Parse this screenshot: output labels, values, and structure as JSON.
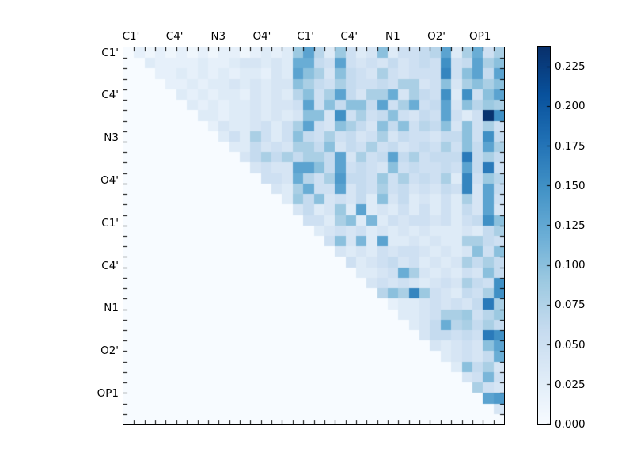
{
  "figure": {
    "background_color": "#ffffff",
    "frame_color": "#000000",
    "text_color": "#000000"
  },
  "chart_data": {
    "type": "heatmap",
    "title": "",
    "xlabel": "",
    "ylabel": "",
    "colormap": "Blues",
    "colormap_stops": [
      "#f7fbff",
      "#deebf7",
      "#c6dbef",
      "#9ecae1",
      "#6baed6",
      "#4292c6",
      "#2171b5",
      "#08519c",
      "#08306b"
    ],
    "vmin": 0.0,
    "vmax": 0.2375,
    "n_rows": 36,
    "n_cols": 36,
    "mask": "lower triangle and diagonal shown as vmin (blank)",
    "x_tick_labels": [
      "C1'",
      "C4'",
      "N3",
      "O4'",
      "C1'",
      "C4'",
      "N1",
      "O2'",
      "OP1"
    ],
    "y_tick_labels": [
      "C1'",
      "C4'",
      "N3",
      "O4'",
      "C1'",
      "C4'",
      "N1",
      "O2'",
      "OP1"
    ],
    "colorbar": {
      "position": "right",
      "tick_labels": [
        "0.000",
        "0.025",
        "0.050",
        "0.075",
        "0.100",
        "0.125",
        "0.150",
        "0.175",
        "0.200",
        "0.225"
      ],
      "tick_values": [
        0.0,
        0.025,
        0.05,
        0.075,
        0.1,
        0.125,
        0.15,
        0.175,
        0.2,
        0.225
      ]
    },
    "matrix": [
      [
        0,
        0.02,
        0.01,
        0.02,
        0.01,
        0.02,
        0.01,
        0.02,
        0.01,
        0.02,
        0.02,
        0.01,
        0.02,
        0.03,
        0.02,
        0.03,
        0.09,
        0.13,
        0.07,
        0.03,
        0.09,
        0.05,
        0.03,
        0.04,
        0.1,
        0.03,
        0.05,
        0.05,
        0.06,
        0.07,
        0.13,
        0.03,
        0.08,
        0.12,
        0.05,
        0.08
      ],
      [
        0,
        0,
        0.03,
        0.02,
        0.02,
        0.02,
        0.02,
        0.03,
        0.02,
        0.02,
        0.03,
        0.04,
        0.04,
        0.03,
        0.04,
        0.03,
        0.12,
        0.12,
        0.06,
        0.05,
        0.13,
        0.05,
        0.04,
        0.05,
        0.04,
        0.06,
        0.04,
        0.05,
        0.06,
        0.05,
        0.15,
        0.05,
        0.06,
        0.13,
        0.08,
        0.1
      ],
      [
        0,
        0,
        0,
        0.02,
        0.02,
        0.03,
        0.02,
        0.03,
        0.02,
        0.03,
        0.02,
        0.03,
        0.03,
        0.02,
        0.04,
        0.03,
        0.13,
        0.1,
        0.08,
        0.04,
        0.1,
        0.06,
        0.05,
        0.04,
        0.08,
        0.05,
        0.04,
        0.05,
        0.05,
        0.05,
        0.16,
        0.05,
        0.1,
        0.13,
        0.06,
        0.13
      ],
      [
        0,
        0,
        0,
        0,
        0.02,
        0.02,
        0.03,
        0.02,
        0.03,
        0.03,
        0.04,
        0.03,
        0.04,
        0.03,
        0.04,
        0.04,
        0.1,
        0.08,
        0.06,
        0.05,
        0.08,
        0.06,
        0.05,
        0.05,
        0.06,
        0.05,
        0.08,
        0.08,
        0.04,
        0.05,
        0.1,
        0.04,
        0.08,
        0.1,
        0.08,
        0.1
      ],
      [
        0,
        0,
        0,
        0,
        0,
        0.03,
        0.02,
        0.03,
        0.02,
        0.03,
        0.03,
        0.02,
        0.04,
        0.03,
        0.04,
        0.03,
        0.07,
        0.1,
        0.05,
        0.08,
        0.13,
        0.06,
        0.04,
        0.08,
        0.08,
        0.12,
        0.04,
        0.08,
        0.06,
        0.05,
        0.15,
        0.03,
        0.15,
        0.05,
        0.1,
        0.13
      ],
      [
        0,
        0,
        0,
        0,
        0,
        0,
        0.03,
        0.02,
        0.03,
        0.02,
        0.03,
        0.03,
        0.04,
        0.03,
        0.04,
        0.04,
        0.05,
        0.13,
        0.05,
        0.1,
        0.06,
        0.1,
        0.1,
        0.06,
        0.13,
        0.05,
        0.08,
        0.12,
        0.05,
        0.06,
        0.13,
        0.04,
        0.1,
        0.07,
        0.09,
        0.08
      ],
      [
        0,
        0,
        0,
        0,
        0,
        0,
        0,
        0.03,
        0.03,
        0.02,
        0.03,
        0.03,
        0.04,
        0.03,
        0.04,
        0.03,
        0.04,
        0.1,
        0.1,
        0.04,
        0.15,
        0.05,
        0.08,
        0.05,
        0.06,
        0.1,
        0.05,
        0.04,
        0.06,
        0.05,
        0.13,
        0.05,
        0.03,
        0.05,
        0.235,
        0.15
      ],
      [
        0,
        0,
        0,
        0,
        0,
        0,
        0,
        0,
        0.02,
        0.04,
        0.03,
        0.03,
        0.04,
        0.05,
        0.03,
        0.05,
        0.08,
        0.13,
        0.05,
        0.04,
        0.1,
        0.08,
        0.06,
        0.04,
        0.1,
        0.06,
        0.1,
        0.05,
        0.07,
        0.06,
        0.1,
        0.04,
        0.1,
        0.05,
        0.08,
        0.05
      ],
      [
        0,
        0,
        0,
        0,
        0,
        0,
        0,
        0,
        0,
        0.03,
        0.05,
        0.03,
        0.08,
        0.05,
        0.03,
        0.05,
        0.1,
        0.06,
        0.05,
        0.08,
        0.05,
        0.06,
        0.04,
        0.05,
        0.08,
        0.04,
        0.06,
        0.05,
        0.05,
        0.04,
        0.06,
        0.06,
        0.1,
        0.05,
        0.15,
        0.06
      ],
      [
        0,
        0,
        0,
        0,
        0,
        0,
        0,
        0,
        0,
        0,
        0.03,
        0.03,
        0.06,
        0.04,
        0.05,
        0.04,
        0.08,
        0.08,
        0.06,
        0.1,
        0.04,
        0.06,
        0.05,
        0.08,
        0.05,
        0.06,
        0.04,
        0.05,
        0.06,
        0.05,
        0.08,
        0.05,
        0.1,
        0.06,
        0.13,
        0.08
      ],
      [
        0,
        0,
        0,
        0,
        0,
        0,
        0,
        0,
        0,
        0,
        0,
        0.04,
        0.06,
        0.08,
        0.06,
        0.08,
        0.06,
        0.08,
        0.08,
        0.06,
        0.13,
        0.04,
        0.08,
        0.05,
        0.06,
        0.13,
        0.06,
        0.08,
        0.05,
        0.06,
        0.06,
        0.06,
        0.17,
        0.06,
        0.08,
        0.06
      ],
      [
        0,
        0,
        0,
        0,
        0,
        0,
        0,
        0,
        0,
        0,
        0,
        0,
        0.04,
        0.05,
        0.04,
        0.04,
        0.13,
        0.13,
        0.1,
        0.06,
        0.13,
        0.05,
        0.06,
        0.05,
        0.04,
        0.1,
        0.05,
        0.06,
        0.05,
        0.05,
        0.06,
        0.05,
        0.13,
        0.06,
        0.17,
        0.05
      ],
      [
        0,
        0,
        0,
        0,
        0,
        0,
        0,
        0,
        0,
        0,
        0,
        0,
        0,
        0.05,
        0.05,
        0.04,
        0.12,
        0.07,
        0.05,
        0.08,
        0.14,
        0.06,
        0.06,
        0.05,
        0.09,
        0.05,
        0.08,
        0.05,
        0.06,
        0.05,
        0.08,
        0.03,
        0.16,
        0.05,
        0.09,
        0.07
      ],
      [
        0,
        0,
        0,
        0,
        0,
        0,
        0,
        0,
        0,
        0,
        0,
        0,
        0,
        0,
        0.04,
        0.03,
        0.08,
        0.12,
        0.05,
        0.05,
        0.13,
        0.04,
        0.06,
        0.05,
        0.08,
        0.05,
        0.06,
        0.04,
        0.05,
        0.04,
        0.06,
        0.05,
        0.16,
        0.04,
        0.13,
        0.06
      ],
      [
        0,
        0,
        0,
        0,
        0,
        0,
        0,
        0,
        0,
        0,
        0,
        0,
        0,
        0,
        0,
        0.03,
        0.09,
        0.06,
        0.1,
        0.04,
        0.05,
        0.04,
        0.06,
        0.03,
        0.1,
        0.04,
        0.06,
        0.03,
        0.04,
        0.03,
        0.05,
        0.03,
        0.08,
        0.04,
        0.13,
        0.05
      ],
      [
        0,
        0,
        0,
        0,
        0,
        0,
        0,
        0,
        0,
        0,
        0,
        0,
        0,
        0,
        0,
        0,
        0.04,
        0.06,
        0.03,
        0.04,
        0.09,
        0.03,
        0.13,
        0.03,
        0.04,
        0.03,
        0.05,
        0.03,
        0.05,
        0.03,
        0.05,
        0.03,
        0.06,
        0.04,
        0.13,
        0.04
      ],
      [
        0,
        0,
        0,
        0,
        0,
        0,
        0,
        0,
        0,
        0,
        0,
        0,
        0,
        0,
        0,
        0,
        0,
        0.05,
        0.05,
        0.03,
        0.08,
        0.1,
        0.03,
        0.11,
        0.03,
        0.05,
        0.04,
        0.05,
        0.05,
        0.04,
        0.05,
        0.03,
        0.05,
        0.06,
        0.15,
        0.1
      ],
      [
        0,
        0,
        0,
        0,
        0,
        0,
        0,
        0,
        0,
        0,
        0,
        0,
        0,
        0,
        0,
        0,
        0,
        0,
        0.03,
        0.04,
        0.05,
        0.04,
        0.05,
        0.03,
        0.04,
        0.03,
        0.04,
        0.03,
        0.04,
        0.03,
        0.03,
        0.03,
        0.04,
        0.03,
        0.06,
        0.08
      ],
      [
        0,
        0,
        0,
        0,
        0,
        0,
        0,
        0,
        0,
        0,
        0,
        0,
        0,
        0,
        0,
        0,
        0,
        0,
        0,
        0.05,
        0.1,
        0.04,
        0.11,
        0.03,
        0.13,
        0.03,
        0.03,
        0.04,
        0.03,
        0.04,
        0.03,
        0.03,
        0.08,
        0.08,
        0.06,
        0.05
      ],
      [
        0,
        0,
        0,
        0,
        0,
        0,
        0,
        0,
        0,
        0,
        0,
        0,
        0,
        0,
        0,
        0,
        0,
        0,
        0,
        0,
        0.04,
        0.03,
        0.04,
        0.03,
        0.05,
        0.04,
        0.05,
        0.05,
        0.04,
        0.03,
        0.04,
        0.03,
        0.04,
        0.1,
        0.05,
        0.1
      ],
      [
        0,
        0,
        0,
        0,
        0,
        0,
        0,
        0,
        0,
        0,
        0,
        0,
        0,
        0,
        0,
        0,
        0,
        0,
        0,
        0,
        0,
        0.05,
        0.03,
        0.04,
        0.05,
        0.06,
        0.04,
        0.05,
        0.03,
        0.04,
        0.03,
        0.04,
        0.08,
        0.06,
        0.08,
        0.06
      ],
      [
        0,
        0,
        0,
        0,
        0,
        0,
        0,
        0,
        0,
        0,
        0,
        0,
        0,
        0,
        0,
        0,
        0,
        0,
        0,
        0,
        0,
        0,
        0.03,
        0.03,
        0.04,
        0.05,
        0.12,
        0.08,
        0.04,
        0.03,
        0.04,
        0.03,
        0.05,
        0.04,
        0.1,
        0.06
      ],
      [
        0,
        0,
        0,
        0,
        0,
        0,
        0,
        0,
        0,
        0,
        0,
        0,
        0,
        0,
        0,
        0,
        0,
        0,
        0,
        0,
        0,
        0,
        0,
        0.04,
        0.05,
        0.04,
        0.05,
        0.04,
        0.03,
        0.04,
        0.05,
        0.04,
        0.08,
        0.06,
        0.05,
        0.15
      ],
      [
        0,
        0,
        0,
        0,
        0,
        0,
        0,
        0,
        0,
        0,
        0,
        0,
        0,
        0,
        0,
        0,
        0,
        0,
        0,
        0,
        0,
        0,
        0,
        0,
        0.07,
        0.1,
        0.08,
        0.16,
        0.09,
        0.05,
        0.04,
        0.03,
        0.06,
        0.05,
        0.08,
        0.15
      ],
      [
        0,
        0,
        0,
        0,
        0,
        0,
        0,
        0,
        0,
        0,
        0,
        0,
        0,
        0,
        0,
        0,
        0,
        0,
        0,
        0,
        0,
        0,
        0,
        0,
        0,
        0.02,
        0.03,
        0.03,
        0.04,
        0.05,
        0.04,
        0.05,
        0.04,
        0.06,
        0.17,
        0.08
      ],
      [
        0,
        0,
        0,
        0,
        0,
        0,
        0,
        0,
        0,
        0,
        0,
        0,
        0,
        0,
        0,
        0,
        0,
        0,
        0,
        0,
        0,
        0,
        0,
        0,
        0,
        0,
        0.03,
        0.03,
        0.04,
        0.05,
        0.08,
        0.08,
        0.09,
        0.05,
        0.07,
        0.09
      ],
      [
        0,
        0,
        0,
        0,
        0,
        0,
        0,
        0,
        0,
        0,
        0,
        0,
        0,
        0,
        0,
        0,
        0,
        0,
        0,
        0,
        0,
        0,
        0,
        0,
        0,
        0,
        0,
        0.03,
        0.04,
        0.06,
        0.12,
        0.07,
        0.08,
        0.06,
        0.08,
        0.06
      ],
      [
        0,
        0,
        0,
        0,
        0,
        0,
        0,
        0,
        0,
        0,
        0,
        0,
        0,
        0,
        0,
        0,
        0,
        0,
        0,
        0,
        0,
        0,
        0,
        0,
        0,
        0,
        0,
        0,
        0.04,
        0.06,
        0.06,
        0.05,
        0.06,
        0.05,
        0.17,
        0.15
      ],
      [
        0,
        0,
        0,
        0,
        0,
        0,
        0,
        0,
        0,
        0,
        0,
        0,
        0,
        0,
        0,
        0,
        0,
        0,
        0,
        0,
        0,
        0,
        0,
        0,
        0,
        0,
        0,
        0,
        0,
        0.04,
        0.03,
        0.04,
        0.05,
        0.04,
        0.1,
        0.13
      ],
      [
        0,
        0,
        0,
        0,
        0,
        0,
        0,
        0,
        0,
        0,
        0,
        0,
        0,
        0,
        0,
        0,
        0,
        0,
        0,
        0,
        0,
        0,
        0,
        0,
        0,
        0,
        0,
        0,
        0,
        0,
        0.03,
        0.04,
        0.05,
        0.04,
        0.06,
        0.12
      ],
      [
        0,
        0,
        0,
        0,
        0,
        0,
        0,
        0,
        0,
        0,
        0,
        0,
        0,
        0,
        0,
        0,
        0,
        0,
        0,
        0,
        0,
        0,
        0,
        0,
        0,
        0,
        0,
        0,
        0,
        0,
        0,
        0.03,
        0.1,
        0.06,
        0.08,
        0.04
      ],
      [
        0,
        0,
        0,
        0,
        0,
        0,
        0,
        0,
        0,
        0,
        0,
        0,
        0,
        0,
        0,
        0,
        0,
        0,
        0,
        0,
        0,
        0,
        0,
        0,
        0,
        0,
        0,
        0,
        0,
        0,
        0,
        0,
        0.04,
        0.05,
        0.11,
        0.05
      ],
      [
        0,
        0,
        0,
        0,
        0,
        0,
        0,
        0,
        0,
        0,
        0,
        0,
        0,
        0,
        0,
        0,
        0,
        0,
        0,
        0,
        0,
        0,
        0,
        0,
        0,
        0,
        0,
        0,
        0,
        0,
        0,
        0,
        0,
        0.08,
        0.05,
        0.04
      ],
      [
        0,
        0,
        0,
        0,
        0,
        0,
        0,
        0,
        0,
        0,
        0,
        0,
        0,
        0,
        0,
        0,
        0,
        0,
        0,
        0,
        0,
        0,
        0,
        0,
        0,
        0,
        0,
        0,
        0,
        0,
        0,
        0,
        0,
        0,
        0.13,
        0.14
      ],
      [
        0,
        0,
        0,
        0,
        0,
        0,
        0,
        0,
        0,
        0,
        0,
        0,
        0,
        0,
        0,
        0,
        0,
        0,
        0,
        0,
        0,
        0,
        0,
        0,
        0,
        0,
        0,
        0,
        0,
        0,
        0,
        0,
        0,
        0,
        0,
        0.04
      ],
      [
        0,
        0,
        0,
        0,
        0,
        0,
        0,
        0,
        0,
        0,
        0,
        0,
        0,
        0,
        0,
        0,
        0,
        0,
        0,
        0,
        0,
        0,
        0,
        0,
        0,
        0,
        0,
        0,
        0,
        0,
        0,
        0,
        0,
        0,
        0,
        0
      ]
    ]
  }
}
